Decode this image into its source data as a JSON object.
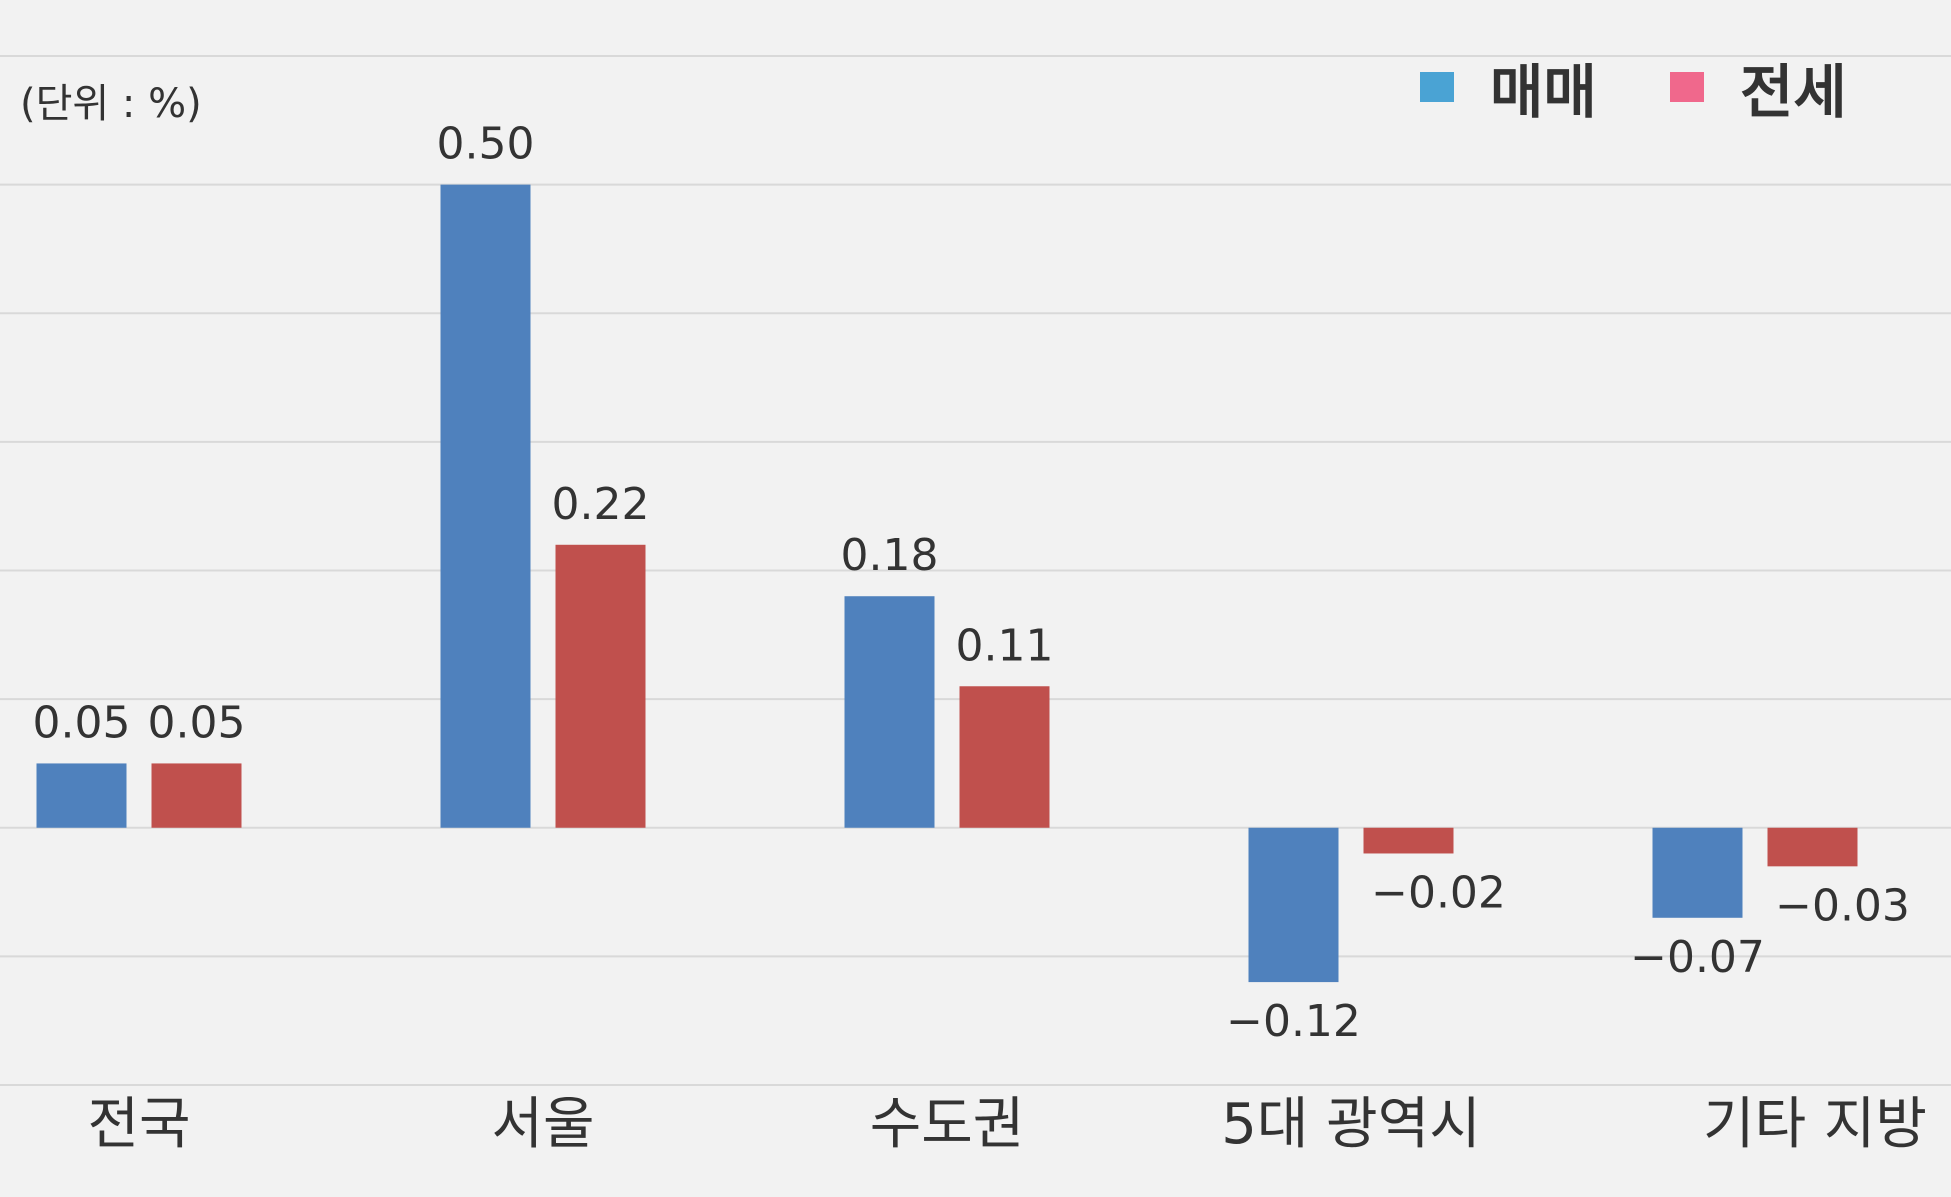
{
  "chart_data": {
    "type": "bar",
    "unit_label": "(단위 : %)",
    "categories": [
      "전국",
      "서울",
      "수도권",
      "5대 광역시",
      "기타 지방"
    ],
    "series": [
      {
        "name": "매매",
        "color": "#4f81bd",
        "legend_color": "#4aa3d4",
        "values": [
          0.05,
          0.5,
          0.18,
          -0.12,
          -0.07
        ],
        "value_labels": [
          "0.05",
          "0.50",
          "0.18",
          "−0.12",
          "−0.07"
        ]
      },
      {
        "name": "전세",
        "color": "#c0504d",
        "legend_color": "#f0688c",
        "values": [
          0.05,
          0.22,
          0.11,
          -0.02,
          -0.03
        ],
        "value_labels": [
          "0.05",
          "0.22",
          "0.11",
          "−0.02",
          "−0.03"
        ]
      }
    ],
    "ylim": [
      -0.2,
      0.6
    ],
    "yticks": [
      -0.2,
      -0.1,
      0,
      0.1,
      0.2,
      0.3,
      0.4,
      0.5,
      0.6
    ],
    "grid": true,
    "legend": "top-right"
  }
}
